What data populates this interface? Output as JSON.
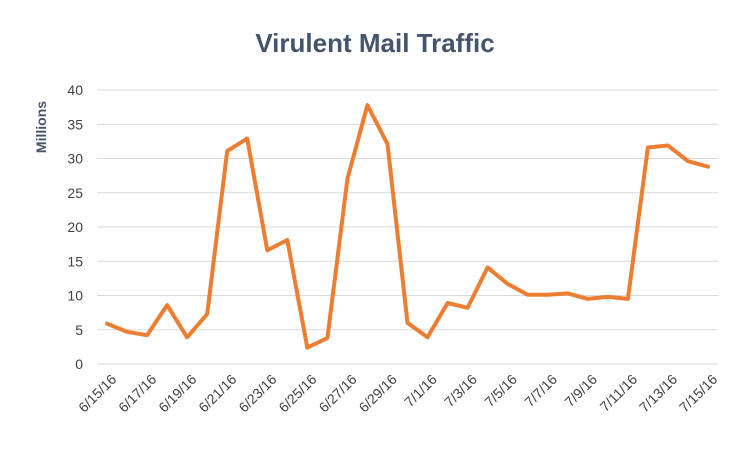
{
  "chart_data": {
    "type": "line",
    "title": "Virulent Mail Traffic",
    "y_label": "Millions",
    "categories": [
      "6/15/16",
      null,
      "6/17/16",
      null,
      "6/19/16",
      null,
      "6/21/16",
      null,
      "6/23/16",
      null,
      "6/25/16",
      null,
      "6/27/16",
      null,
      "6/29/16",
      null,
      "7/1/16",
      null,
      "7/3/16",
      null,
      "7/5/16",
      null,
      "7/7/16",
      null,
      "7/9/16",
      null,
      "7/11/16",
      null,
      "7/13/16",
      null,
      "7/15/16"
    ],
    "series": [
      {
        "name": "Virulent Mail",
        "color": "#ed7d31",
        "values": [
          5.9,
          4.7,
          4.2,
          8.6,
          3.9,
          7.3,
          31.1,
          32.9,
          16.6,
          18.1,
          2.4,
          3.8,
          27.0,
          37.8,
          32.1,
          6.0,
          3.9,
          8.9,
          8.2,
          14.1,
          11.7,
          10.1,
          10.1,
          10.3,
          9.5,
          9.8,
          9.5,
          31.6,
          31.9,
          29.6,
          28.8
        ]
      }
    ],
    "ylim": [
      0,
      40
    ],
    "yticks": [
      0,
      5,
      10,
      15,
      20,
      25,
      30,
      35,
      40
    ],
    "grid": true
  }
}
